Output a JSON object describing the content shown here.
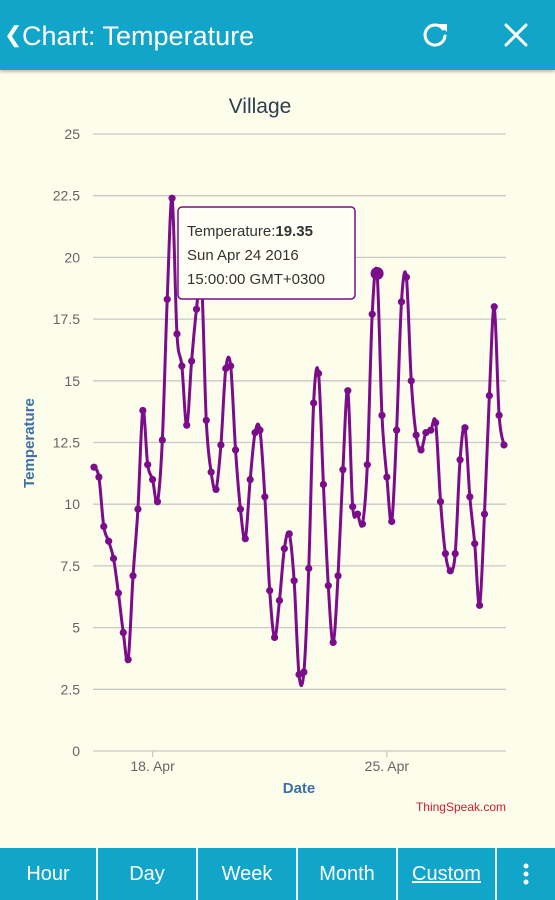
{
  "header": {
    "back_icon": "chevron-left-icon",
    "title": "Chart: Temperature",
    "refresh_icon": "refresh-icon",
    "close_icon": "close-icon",
    "background": "#11a6c9"
  },
  "chart_data": {
    "type": "line",
    "title": "Village",
    "xlabel": "Date",
    "ylabel": "Temperature",
    "ylim": [
      0,
      25
    ],
    "y_ticks": [
      "0",
      "2.5",
      "5",
      "7.5",
      "10",
      "12.5",
      "15",
      "17.5",
      "20",
      "22.5",
      "25"
    ],
    "x_ticks": [
      "18. Apr",
      "25. Apr"
    ],
    "grid": "horizontal",
    "line_color": "#7b0d8a",
    "credit": "ThingSpeak.com",
    "series": [
      {
        "values": [
          11.5,
          11.1,
          9.1,
          8.5,
          7.8,
          6.4,
          4.8,
          3.7,
          7.1,
          9.8,
          13.8,
          11.6,
          11.0,
          10.1,
          12.6,
          18.3,
          22.4,
          16.9,
          15.6,
          13.2,
          15.8,
          17.9,
          19.2,
          13.4,
          11.3,
          10.6,
          12.4,
          15.5,
          15.6,
          12.2,
          9.8,
          8.6,
          11.0,
          12.9,
          13.0,
          10.3,
          6.5,
          4.6,
          6.1,
          8.2,
          8.8,
          6.9,
          3.1,
          3.2,
          7.4,
          14.1,
          15.3,
          10.8,
          6.7,
          4.4,
          7.1,
          11.4,
          14.6,
          9.9,
          9.6,
          9.2,
          11.6,
          17.7,
          19.35,
          13.6,
          11.1,
          9.3,
          13.0,
          18.2,
          19.2,
          15.0,
          12.8,
          12.2,
          12.9,
          13.0,
          13.3,
          10.1,
          8.0,
          7.3,
          8.0,
          11.8,
          13.1,
          10.3,
          8.4,
          5.9,
          9.6,
          14.4,
          18.0,
          13.6,
          12.4
        ]
      }
    ],
    "tooltip": {
      "label": "Temperature:",
      "value": "19.35",
      "date": "Sun Apr 24 2016",
      "time": "15:00:00 GMT+0300"
    },
    "highlighted_index": 58
  },
  "tabs": [
    {
      "label": "Hour",
      "active": false
    },
    {
      "label": "Day",
      "active": false
    },
    {
      "label": "Week",
      "active": false
    },
    {
      "label": "Month",
      "active": false
    },
    {
      "label": "Custom",
      "active": true
    }
  ],
  "more_icon": "more-vertical-icon"
}
